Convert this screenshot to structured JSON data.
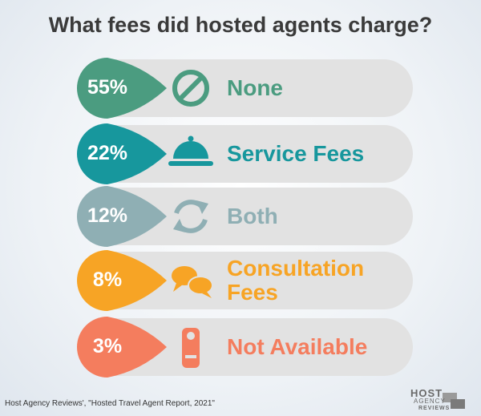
{
  "title": "What fees did hosted agents charge?",
  "items": [
    {
      "percent": "55%",
      "label": "None",
      "color": "#4b9c80"
    },
    {
      "percent": "22%",
      "label": "Service Fees",
      "color": "#17979d"
    },
    {
      "percent": "12%",
      "label": "Both",
      "color": "#8fafb4"
    },
    {
      "percent": "8%",
      "label": "Consultation Fees",
      "color": "#f7a425"
    },
    {
      "percent": "3%",
      "label": "Not Available",
      "color": "#f47d5e"
    }
  ],
  "source": "Host Agency Reviews', \"Hosted Travel Agent Report, 2021\"",
  "logo": {
    "line1": "HOST",
    "line2": "AGENCY",
    "line3": "REVIEWS"
  }
}
